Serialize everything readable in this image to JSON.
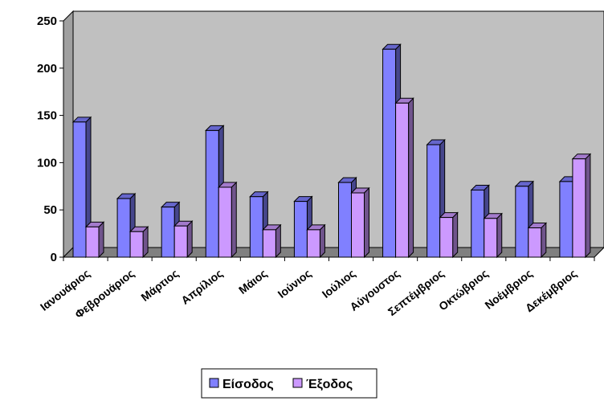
{
  "chart_data": {
    "type": "bar",
    "categories": [
      "Ιανουάριος",
      "Φεβρουάριος",
      "Μάρτιος",
      "Απρίλιος",
      "Μάιος",
      "Ιούνιος",
      "Ιούλιος",
      "Αύγουστος",
      "Σεπτέμβριος",
      "Οκτώβριος",
      "Νοέμβριος",
      "Δεκέμβριος"
    ],
    "series": [
      {
        "name": "Είσοδος",
        "values": [
          143,
          62,
          53,
          134,
          64,
          59,
          79,
          220,
          119,
          71,
          75,
          80
        ],
        "color": "#8080FF"
      },
      {
        "name": "Έξοδος",
        "values": [
          32,
          27,
          33,
          74,
          29,
          29,
          68,
          163,
          42,
          41,
          31,
          104
        ],
        "color": "#CC99FF"
      }
    ],
    "yticks": [
      "0",
      "50",
      "100",
      "150",
      "200",
      "250"
    ],
    "ylim": [
      0,
      250
    ],
    "grid": false,
    "style": "3d-clustered-column",
    "wall_color": "#C0C0C0",
    "legend_position": "bottom"
  }
}
